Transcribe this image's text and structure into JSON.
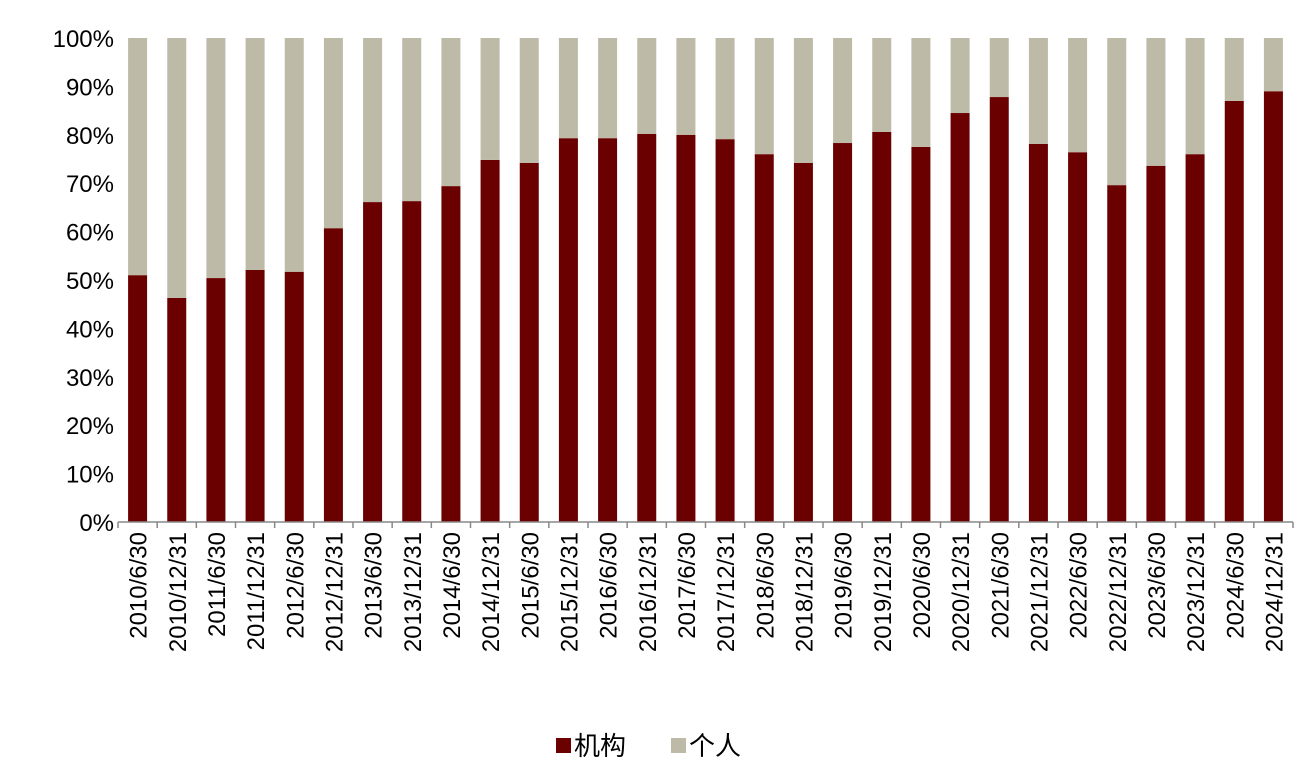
{
  "chart_data": {
    "type": "stacked_bar",
    "categories": [
      "2010/6/30",
      "2010/12/31",
      "2011/6/30",
      "2011/12/31",
      "2012/6/30",
      "2012/12/31",
      "2013/6/30",
      "2013/12/31",
      "2014/6/30",
      "2014/12/31",
      "2015/6/30",
      "2015/12/31",
      "2016/6/30",
      "2016/12/31",
      "2017/6/30",
      "2017/12/31",
      "2018/6/30",
      "2018/12/31",
      "2019/6/30",
      "2019/12/31",
      "2020/6/30",
      "2020/12/31",
      "2021/6/30",
      "2021/12/31",
      "2022/6/30",
      "2022/12/31",
      "2023/6/30",
      "2023/12/31",
      "2024/6/30",
      "2024/12/31"
    ],
    "series": [
      {
        "name": "机构",
        "color": "#6b0000",
        "values": [
          51.0,
          46.3,
          50.4,
          52.1,
          51.7,
          60.7,
          66.1,
          66.3,
          69.4,
          74.8,
          74.2,
          79.3,
          79.3,
          80.2,
          80.0,
          79.1,
          76.0,
          74.2,
          78.3,
          80.6,
          77.5,
          84.5,
          87.8,
          78.1,
          76.4,
          69.6,
          73.6,
          76.0,
          87.0,
          89.0
        ]
      },
      {
        "name": "个人",
        "color": "#bdbaa8",
        "values": [
          49.0,
          53.7,
          49.6,
          47.9,
          48.3,
          39.3,
          33.9,
          33.7,
          30.6,
          25.2,
          25.8,
          20.7,
          20.7,
          19.8,
          20.0,
          20.9,
          24.0,
          25.8,
          21.7,
          19.4,
          22.5,
          15.5,
          12.2,
          21.9,
          23.6,
          30.4,
          26.4,
          24.0,
          13.0,
          11.0
        ]
      }
    ],
    "ylim": [
      0,
      100
    ],
    "yticks": [
      {
        "value": 0,
        "label": "0%"
      },
      {
        "value": 10,
        "label": "10%"
      },
      {
        "value": 20,
        "label": "20%"
      },
      {
        "value": 30,
        "label": "30%"
      },
      {
        "value": 40,
        "label": "40%"
      },
      {
        "value": 50,
        "label": "50%"
      },
      {
        "value": 60,
        "label": "60%"
      },
      {
        "value": 70,
        "label": "70%"
      },
      {
        "value": 80,
        "label": "80%"
      },
      {
        "value": 90,
        "label": "90%"
      },
      {
        "value": 100,
        "label": "100%"
      }
    ],
    "legend": "bottom"
  }
}
